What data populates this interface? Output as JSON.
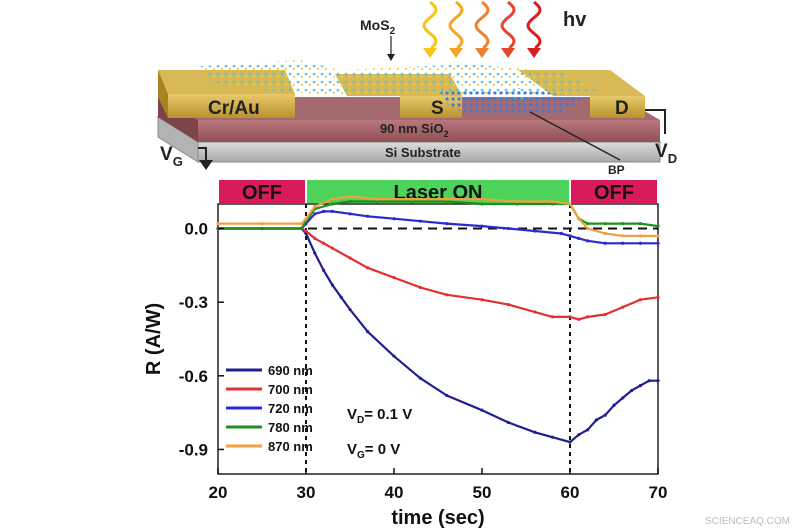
{
  "device": {
    "mos2_label": "MoS",
    "mos2_sub": "2",
    "light_label": "hv",
    "contact_label": "Cr/Au",
    "source_label": "S",
    "drain_label": "D",
    "oxide_label": "90 nm SiO",
    "oxide_sub": "2",
    "substrate_label": "Si Substrate",
    "bp_label": "BP",
    "vg_label": "V",
    "vg_sub": "G",
    "vd_label": "V",
    "vd_sub": "D",
    "light_colors": [
      "#f5c518",
      "#f5a623",
      "#f07f2a",
      "#e8432f",
      "#d81e1e"
    ]
  },
  "phases": [
    {
      "label": "OFF",
      "start": 20,
      "end": 30,
      "color": "#d81b5a"
    },
    {
      "label": "Laser ON",
      "start": 30,
      "end": 60,
      "color": "#4cd35a"
    },
    {
      "label": "OFF",
      "start": 60,
      "end": 70,
      "color": "#d81b5a"
    }
  ],
  "annotations": {
    "vd_text": "V",
    "vd_sub": "D",
    "vd_value": "= 0.1 V",
    "vg_text": "V",
    "vg_sub": "G",
    "vg_value": "= 0 V"
  },
  "watermark": "SCIENCEAQ.COM",
  "chart_data": {
    "type": "line",
    "title": "",
    "xlabel": "time (sec)",
    "ylabel": "R (A/W)",
    "xlim": [
      20,
      70
    ],
    "ylim": [
      -1.0,
      0.1
    ],
    "xticks": [
      20,
      30,
      40,
      50,
      60,
      70
    ],
    "yticks": [
      0.0,
      -0.3,
      -0.6,
      -0.9
    ],
    "ytick_labels": [
      "0.0",
      "-0.3",
      "-0.6",
      "-0.9"
    ],
    "grid": false,
    "legend_position": "bottom-left",
    "reference_lines": {
      "vertical_x": [
        30,
        60
      ],
      "horizontal_y": 0.0
    },
    "series": [
      {
        "name": "690 nm",
        "color": "#1f1f8f",
        "x": [
          20,
          25,
          29.5,
          30,
          31,
          32,
          33,
          34,
          35,
          37,
          40,
          43,
          46,
          50,
          53,
          56,
          58,
          60,
          61,
          62,
          63,
          64,
          65,
          66,
          67,
          68,
          69,
          70
        ],
        "y": [
          0.0,
          0.0,
          0.0,
          -0.02,
          -0.1,
          -0.17,
          -0.23,
          -0.28,
          -0.33,
          -0.42,
          -0.52,
          -0.61,
          -0.68,
          -0.74,
          -0.79,
          -0.83,
          -0.85,
          -0.87,
          -0.84,
          -0.82,
          -0.78,
          -0.76,
          -0.72,
          -0.69,
          -0.66,
          -0.64,
          -0.62,
          -0.62
        ]
      },
      {
        "name": "700 nm",
        "color": "#e03030",
        "x": [
          20,
          25,
          29.5,
          30,
          31,
          32,
          33,
          35,
          37,
          40,
          43,
          46,
          50,
          53,
          56,
          58,
          60,
          61,
          62,
          64,
          66,
          68,
          70
        ],
        "y": [
          0.0,
          0.0,
          0.0,
          -0.01,
          -0.04,
          -0.06,
          -0.08,
          -0.12,
          -0.16,
          -0.2,
          -0.24,
          -0.27,
          -0.29,
          -0.31,
          -0.34,
          -0.36,
          -0.36,
          -0.37,
          -0.36,
          -0.35,
          -0.32,
          -0.29,
          -0.28
        ]
      },
      {
        "name": "720 nm",
        "color": "#2a2ad0",
        "x": [
          20,
          25,
          29.5,
          30,
          31,
          32,
          33,
          35,
          37,
          40,
          43,
          46,
          50,
          53,
          56,
          59,
          60,
          61,
          62,
          64,
          66,
          68,
          70
        ],
        "y": [
          0.0,
          0.0,
          0.0,
          0.02,
          0.06,
          0.07,
          0.07,
          0.06,
          0.05,
          0.04,
          0.03,
          0.02,
          0.01,
          0.0,
          -0.01,
          -0.02,
          -0.03,
          -0.04,
          -0.05,
          -0.06,
          -0.06,
          -0.06,
          -0.06
        ]
      },
      {
        "name": "780 nm",
        "color": "#1f8f1f",
        "x": [
          20,
          25,
          29.5,
          30,
          31,
          33,
          35,
          38,
          42,
          46,
          50,
          54,
          58,
          60,
          61,
          62,
          64,
          66,
          68,
          70
        ],
        "y": [
          0.0,
          0.0,
          0.0,
          0.03,
          0.08,
          0.1,
          0.11,
          0.11,
          0.11,
          0.11,
          0.1,
          0.1,
          0.1,
          0.1,
          0.04,
          0.02,
          0.02,
          0.02,
          0.02,
          0.01
        ]
      },
      {
        "name": "870 nm",
        "color": "#f0a040",
        "x": [
          20,
          25,
          29.5,
          30,
          31,
          33,
          35,
          38,
          42,
          46,
          50,
          54,
          58,
          60,
          61,
          62,
          64,
          66,
          68,
          70
        ],
        "y": [
          0.02,
          0.02,
          0.02,
          0.04,
          0.09,
          0.12,
          0.13,
          0.12,
          0.12,
          0.12,
          0.12,
          0.11,
          0.11,
          0.1,
          0.04,
          0.0,
          -0.02,
          -0.03,
          -0.03,
          -0.03
        ]
      }
    ]
  }
}
